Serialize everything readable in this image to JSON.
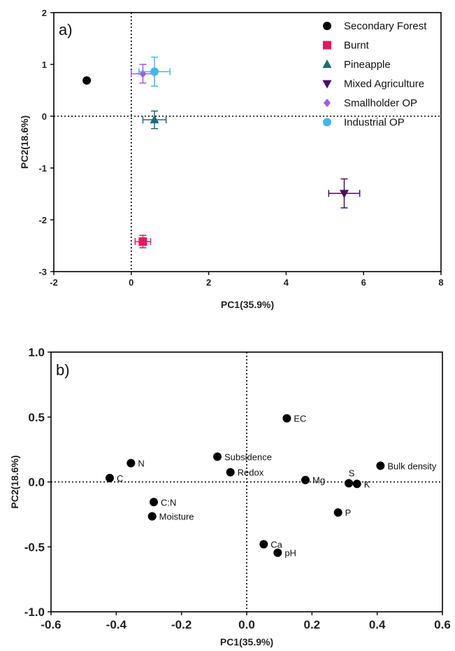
{
  "chart_data": [
    {
      "type": "scatter",
      "panel_label": "a)",
      "xlabel": "PC1(35.9%)",
      "ylabel": "PC2(18.6%)",
      "xlim": [
        -2,
        8
      ],
      "ylim": [
        -3,
        2
      ],
      "x_ticks": [
        -2,
        0,
        2,
        4,
        6,
        8
      ],
      "y_ticks": [
        -3,
        -2,
        -1,
        0,
        1,
        2
      ],
      "reference_lines": {
        "x": 0,
        "y": 0,
        "style": "dotted"
      },
      "legend_position": "top-right",
      "series": [
        {
          "name": "Secondary Forest",
          "marker": "circle",
          "color": "#000000",
          "x": -1.15,
          "y": 0.69,
          "xerr": 0.05,
          "yerr": 0.03
        },
        {
          "name": "Burnt",
          "marker": "square",
          "color": "#e8175d",
          "x": 0.3,
          "y": -2.42,
          "xerr": 0.2,
          "yerr": 0.12
        },
        {
          "name": "Pineapple",
          "marker": "triangle-up",
          "color": "#1f6b75",
          "x": 0.6,
          "y": -0.07,
          "xerr": 0.3,
          "yerr": 0.17
        },
        {
          "name": "Mixed Agriculture",
          "marker": "triangle-down",
          "color": "#4b0c6b",
          "x": 5.5,
          "y": -1.49,
          "xerr": 0.4,
          "yerr": 0.28
        },
        {
          "name": "Smallholder OP",
          "marker": "diamond",
          "color": "#9b5de5",
          "x": 0.3,
          "y": 0.82,
          "xerr": 0.3,
          "yerr": 0.18
        },
        {
          "name": "Industrial OP",
          "marker": "circle",
          "color": "#3fb8ef",
          "x": 0.6,
          "y": 0.86,
          "xerr": 0.4,
          "yerr": 0.28
        }
      ]
    },
    {
      "type": "scatter",
      "panel_label": "b)",
      "xlabel": "PC1(35.9%)",
      "ylabel": "PC2(18.6%)",
      "xlim": [
        -0.6,
        0.6
      ],
      "ylim": [
        -1.0,
        1.0
      ],
      "x_tick_labels": [
        "-0.6",
        "-0.4",
        "-0.2",
        "0.0",
        "0.2",
        "0.4",
        "0.6"
      ],
      "y_tick_labels": [
        "-1.0",
        "-0.5",
        "0.0",
        "0.5",
        "1.0"
      ],
      "reference_lines": {
        "x": 0,
        "y": 0,
        "style": "dotted"
      },
      "points": [
        {
          "label": "EC",
          "x": 0.123,
          "y": 0.49,
          "label_side": "right"
        },
        {
          "label": "Subsidence",
          "x": -0.09,
          "y": 0.195,
          "label_side": "right"
        },
        {
          "label": "Redox",
          "x": -0.05,
          "y": 0.075,
          "label_side": "right"
        },
        {
          "label": "N",
          "x": -0.355,
          "y": 0.145,
          "label_side": "right"
        },
        {
          "label": "C",
          "x": -0.42,
          "y": 0.03,
          "label_side": "right"
        },
        {
          "label": "C:N",
          "x": -0.285,
          "y": -0.155,
          "label_side": "right"
        },
        {
          "label": "Moisture",
          "x": -0.29,
          "y": -0.265,
          "label_side": "right"
        },
        {
          "label": "Mg",
          "x": 0.18,
          "y": 0.015,
          "label_side": "right"
        },
        {
          "label": "S",
          "x": 0.313,
          "y": -0.01,
          "label_side": "above"
        },
        {
          "label": "K",
          "x": 0.338,
          "y": -0.015,
          "label_side": "right"
        },
        {
          "label": "Bulk density",
          "x": 0.41,
          "y": 0.125,
          "label_side": "right"
        },
        {
          "label": "P",
          "x": 0.28,
          "y": -0.235,
          "label_side": "right"
        },
        {
          "label": "Ca",
          "x": 0.052,
          "y": -0.48,
          "label_side": "right"
        },
        {
          "label": "pH",
          "x": 0.095,
          "y": -0.545,
          "label_side": "right"
        }
      ]
    }
  ]
}
